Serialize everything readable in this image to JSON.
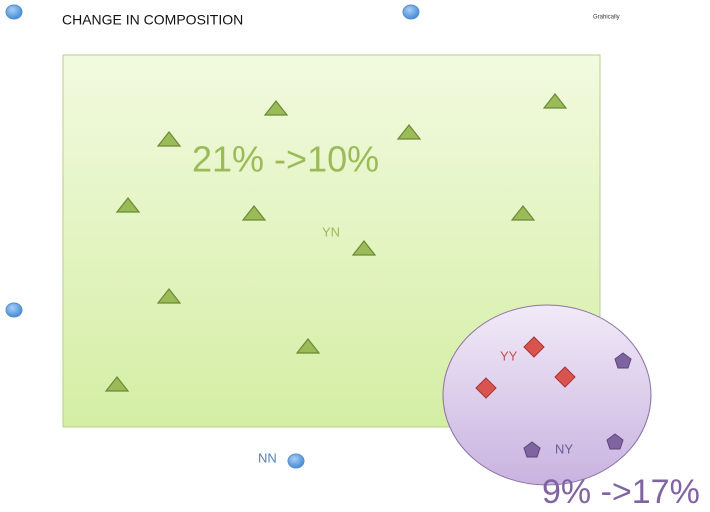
{
  "header": {
    "title": "CHANGE IN COMPOSITION",
    "note": "Grahically"
  },
  "regions": {
    "yn": {
      "label": "YN",
      "change": "21% ->10%"
    },
    "yy": {
      "label": "YY"
    },
    "ny": {
      "label": "NY",
      "change": "9% ->17%"
    },
    "nn": {
      "label": "NN"
    }
  }
}
